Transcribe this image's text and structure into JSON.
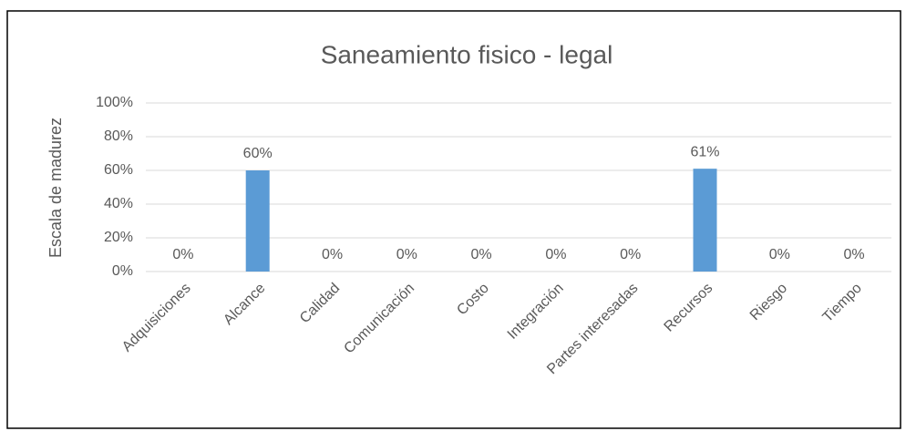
{
  "chart_data": {
    "type": "bar",
    "title": "Saneamiento fisico - legal",
    "y_label": "Escala de madurez",
    "categories": [
      "Adquisiciones",
      "Alcance",
      "Calidad",
      "Comunicación",
      "Costo",
      "Integración",
      "Partes interesadas",
      "Recursos",
      "Riesgo",
      "Tiempo"
    ],
    "values": [
      0,
      60,
      0,
      0,
      0,
      0,
      0,
      61,
      0,
      0
    ],
    "value_labels": [
      "0%",
      "60%",
      "0%",
      "0%",
      "0%",
      "0%",
      "0%",
      "61%",
      "0%",
      "0%"
    ],
    "color": "#5b9bd5",
    "ylim": [
      0,
      100
    ],
    "yticks": [
      {
        "value": 0,
        "label": "0%"
      },
      {
        "value": 20,
        "label": "20%"
      },
      {
        "value": 40,
        "label": "40%"
      },
      {
        "value": 60,
        "label": "60%"
      },
      {
        "value": 80,
        "label": "80%"
      },
      {
        "value": 100,
        "label": "100%"
      }
    ],
    "grid": true
  }
}
